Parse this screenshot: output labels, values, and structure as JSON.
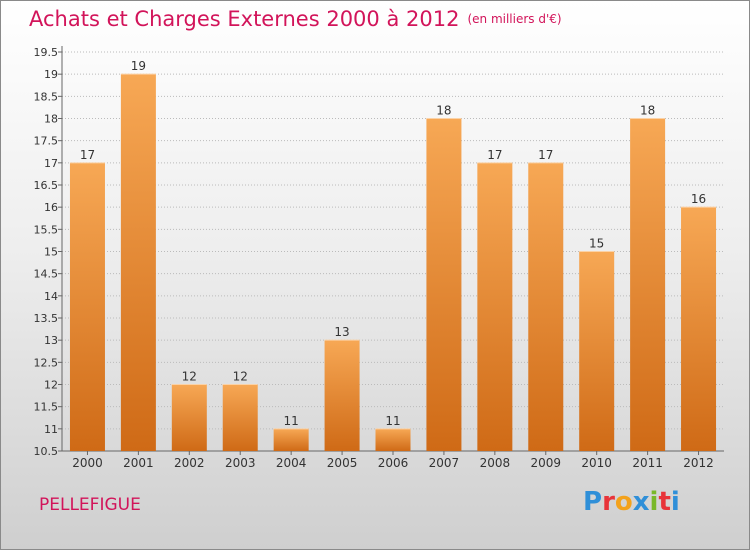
{
  "title": "Achats et Charges Externes 2000 à 2012",
  "subtitle": "(en milliers d'€)",
  "commune": "PELLEFIGUE",
  "logo": {
    "letters": [
      "P",
      "r",
      "o",
      "x",
      "i",
      "t",
      "i"
    ],
    "colors": [
      "#2f8fd8",
      "#e8343a",
      "#f3a21c",
      "#2f8fd8",
      "#7ab829",
      "#e8343a",
      "#2f8fd8"
    ]
  },
  "colors": {
    "accent": "#d2145a",
    "bar_light": "#f7a855",
    "bar_dark": "#cf6a16",
    "grid": "#bbbbbb",
    "axis_text": "#333333"
  },
  "chart_data": {
    "type": "bar",
    "title": "Achats et Charges Externes 2000 à 2012",
    "categories": [
      "2000",
      "2001",
      "2002",
      "2003",
      "2004",
      "2005",
      "2006",
      "2007",
      "2008",
      "2009",
      "2010",
      "2011",
      "2012"
    ],
    "values": [
      17,
      19,
      12,
      12,
      11,
      13,
      11,
      18,
      17,
      17,
      15,
      18,
      16
    ],
    "value_labels": [
      "17",
      "19",
      "12",
      "12",
      "11",
      "13",
      "11",
      "18",
      "17",
      "17",
      "15",
      "18",
      "16"
    ],
    "yticks": [
      "10.5",
      "11",
      "11.5",
      "12",
      "12.5",
      "13",
      "13.5",
      "14",
      "14.5",
      "15",
      "15.5",
      "16",
      "16.5",
      "17",
      "17.5",
      "18",
      "18.5",
      "19",
      "19.5"
    ],
    "ylim": [
      10.5,
      19.5
    ],
    "grid": true,
    "legend": "none"
  }
}
